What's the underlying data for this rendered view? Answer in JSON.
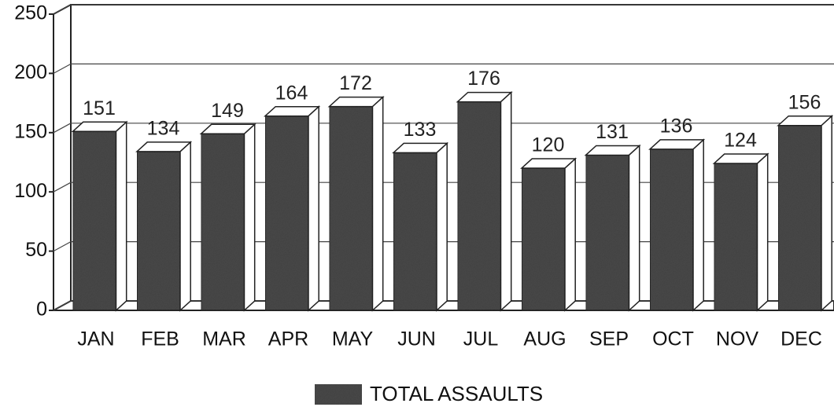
{
  "chart_data": {
    "type": "bar",
    "categories": [
      "JAN",
      "FEB",
      "MAR",
      "APR",
      "MAY",
      "JUN",
      "JUL",
      "AUG",
      "SEP",
      "OCT",
      "NOV",
      "DEC"
    ],
    "series": [
      {
        "name": "TOTAL ASSAULTS",
        "color": "#4a4a4a",
        "values": [
          151,
          134,
          149,
          164,
          172,
          133,
          176,
          120,
          131,
          136,
          124,
          156
        ]
      }
    ],
    "ylim": [
      0,
      250
    ],
    "yticks": [
      0,
      50,
      100,
      150,
      200,
      250
    ],
    "grid": true
  }
}
